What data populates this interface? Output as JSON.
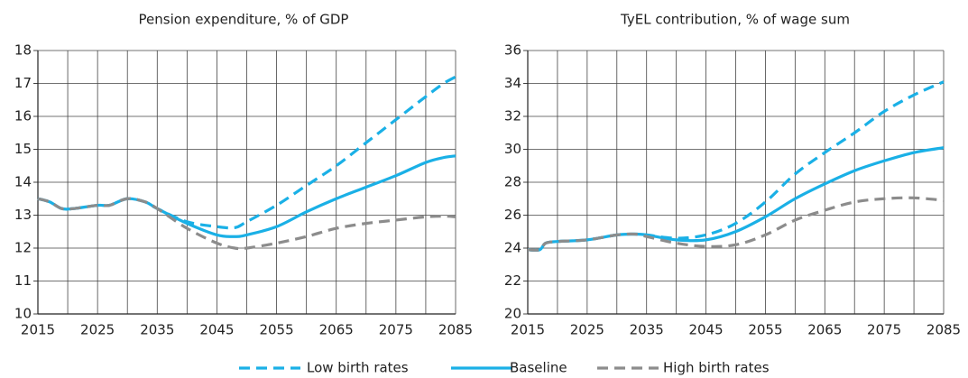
{
  "chart_data": [
    {
      "type": "line",
      "title": "Pension expenditure, % of GDP",
      "x": [
        2015,
        2017,
        2019,
        2021,
        2025,
        2027,
        2030,
        2033,
        2035,
        2040,
        2045,
        2048,
        2050,
        2055,
        2060,
        2065,
        2070,
        2075,
        2080,
        2083,
        2085
      ],
      "xlim": [
        2015,
        2085
      ],
      "xticks": [
        2015,
        2025,
        2035,
        2045,
        2055,
        2065,
        2075,
        2085
      ],
      "xminor": [
        2020,
        2030,
        2040,
        2050,
        2060,
        2070,
        2080
      ],
      "ylim": [
        10,
        18
      ],
      "yticks": [
        10,
        11,
        12,
        13,
        14,
        15,
        16,
        17,
        18
      ],
      "grid": true,
      "series": [
        {
          "name": "Low birth rates",
          "color": "#1ab0e6",
          "dash": true,
          "values": [
            13.5,
            13.4,
            13.2,
            13.2,
            13.3,
            13.3,
            13.5,
            13.4,
            13.2,
            12.8,
            12.65,
            12.62,
            12.8,
            13.3,
            13.9,
            14.5,
            15.2,
            15.9,
            16.6,
            17.0,
            17.2
          ]
        },
        {
          "name": "Baseline",
          "color": "#1ab0e6",
          "dash": false,
          "values": [
            13.5,
            13.4,
            13.2,
            13.2,
            13.3,
            13.3,
            13.5,
            13.4,
            13.2,
            12.75,
            12.4,
            12.35,
            12.4,
            12.65,
            13.1,
            13.5,
            13.85,
            14.2,
            14.6,
            14.75,
            14.8
          ]
        },
        {
          "name": "High birth rates",
          "color": "#8c8c8c",
          "dash": true,
          "values": [
            13.5,
            13.4,
            13.2,
            13.2,
            13.3,
            13.3,
            13.5,
            13.4,
            13.2,
            12.6,
            12.15,
            12.0,
            12.0,
            12.15,
            12.35,
            12.6,
            12.75,
            12.85,
            12.95,
            12.97,
            12.95
          ]
        }
      ]
    },
    {
      "type": "line",
      "title": "TyEL contribution, % of wage sum",
      "x": [
        2015,
        2017,
        2018,
        2020,
        2025,
        2030,
        2033,
        2035,
        2040,
        2045,
        2050,
        2055,
        2060,
        2065,
        2070,
        2075,
        2080,
        2085
      ],
      "xlim": [
        2015,
        2085
      ],
      "xticks": [
        2015,
        2025,
        2035,
        2045,
        2055,
        2065,
        2075,
        2085
      ],
      "xminor": [
        2020,
        2030,
        2040,
        2050,
        2060,
        2070,
        2080
      ],
      "ylim": [
        20,
        36
      ],
      "yticks": [
        20,
        22,
        24,
        26,
        28,
        30,
        32,
        34,
        36
      ],
      "grid": true,
      "series": [
        {
          "color": "#1ab0e6",
          "dash": true,
          "values": [
            23.9,
            23.9,
            24.3,
            24.4,
            24.5,
            24.8,
            24.85,
            24.8,
            24.6,
            24.8,
            25.5,
            26.8,
            28.5,
            29.8,
            31.0,
            32.3,
            33.3,
            34.1
          ]
        },
        {
          "color": "#1ab0e6",
          "dash": false,
          "values": [
            23.9,
            23.9,
            24.3,
            24.4,
            24.5,
            24.8,
            24.85,
            24.8,
            24.5,
            24.5,
            25.0,
            25.9,
            27.0,
            27.9,
            28.7,
            29.3,
            29.8,
            30.1
          ]
        },
        {
          "color": "#8c8c8c",
          "dash": true,
          "values": [
            23.9,
            23.9,
            24.3,
            24.4,
            24.5,
            24.8,
            24.85,
            24.7,
            24.3,
            24.1,
            24.2,
            24.8,
            25.7,
            26.3,
            26.8,
            27.0,
            27.05,
            26.9
          ]
        }
      ]
    }
  ]
}
